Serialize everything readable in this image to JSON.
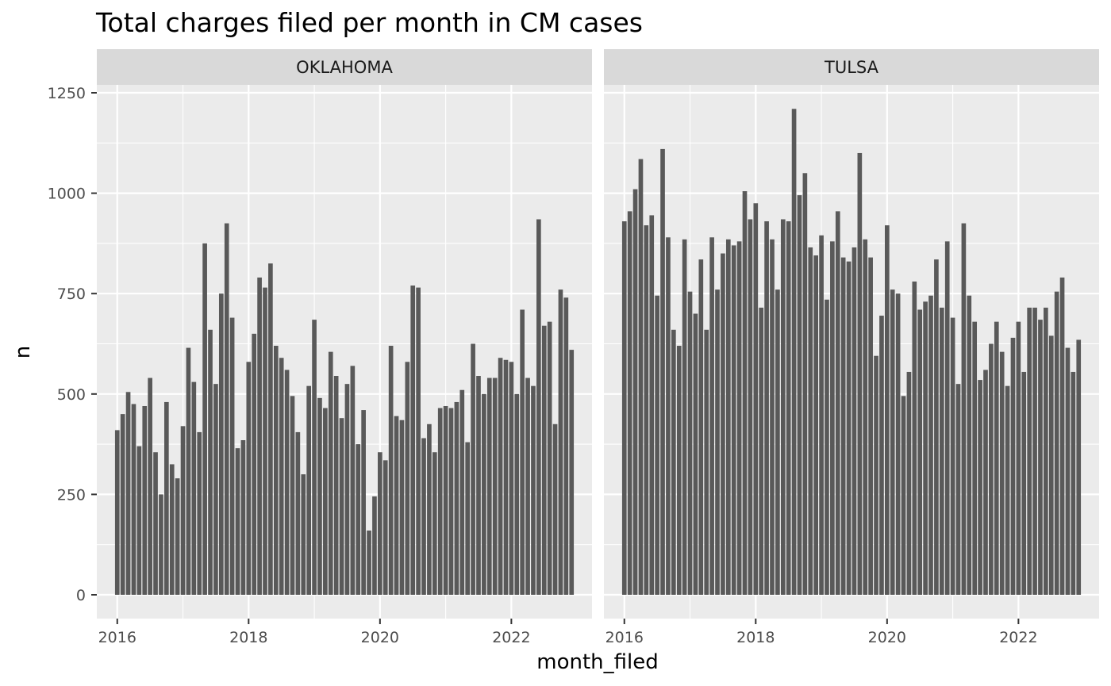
{
  "chart_data": {
    "type": "bar",
    "title": "Total charges filed per month in CM cases",
    "xlabel": "month_filed",
    "ylabel": "n",
    "ylim": [
      0,
      1260
    ],
    "y_ticks": [
      0,
      250,
      500,
      750,
      1000,
      1250
    ],
    "y_tick_labels": [
      "0",
      "250",
      "500",
      "750",
      "1000",
      "1250"
    ],
    "x_ticks": [
      2016,
      2018,
      2020,
      2022
    ],
    "x_tick_labels": [
      "2016",
      "2018",
      "2020",
      "2022"
    ],
    "x_start": "2016-01",
    "x_end": "2022-12",
    "grid": true,
    "bar_color": "#595959",
    "panels": [
      {
        "name": "OKLAHOMA",
        "values": [
          410,
          450,
          505,
          475,
          370,
          470,
          540,
          355,
          250,
          480,
          325,
          290,
          420,
          615,
          530,
          405,
          875,
          660,
          525,
          750,
          925,
          690,
          365,
          385,
          580,
          650,
          790,
          765,
          825,
          620,
          590,
          560,
          495,
          405,
          300,
          520,
          685,
          490,
          465,
          605,
          545,
          440,
          525,
          570,
          375,
          460,
          160,
          245,
          355,
          335,
          620,
          445,
          435,
          580,
          770,
          765,
          390,
          425,
          355,
          465,
          470,
          465,
          480,
          510,
          380,
          625,
          545,
          500,
          540,
          540,
          590,
          585,
          580,
          500,
          710,
          540,
          520,
          935,
          670,
          680,
          425,
          760,
          740,
          610
        ]
      },
      {
        "name": "TULSA",
        "values": [
          930,
          955,
          1010,
          1085,
          920,
          945,
          745,
          1110,
          890,
          660,
          620,
          885,
          755,
          700,
          835,
          660,
          890,
          760,
          850,
          885,
          870,
          880,
          1005,
          935,
          975,
          715,
          930,
          885,
          760,
          935,
          930,
          1210,
          995,
          1050,
          865,
          845,
          895,
          735,
          880,
          955,
          840,
          830,
          865,
          1100,
          885,
          840,
          595,
          695,
          920,
          760,
          750,
          495,
          555,
          780,
          710,
          730,
          745,
          835,
          715,
          880,
          690,
          525,
          925,
          745,
          680,
          535,
          560,
          625,
          680,
          605,
          520,
          640,
          680,
          555,
          715,
          715,
          685,
          715,
          645,
          755,
          790,
          615,
          555,
          635
        ]
      }
    ]
  }
}
